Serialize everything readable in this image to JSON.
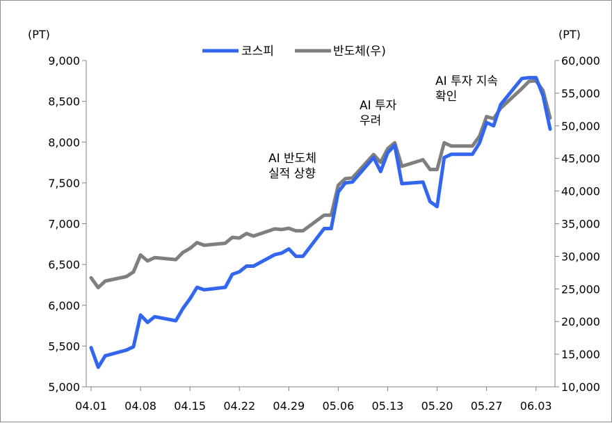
{
  "chart_data": {
    "type": "line",
    "left_unit": "(PT)",
    "right_unit": "(PT)",
    "x_tick_labels": [
      "04.01",
      "04.08",
      "04.15",
      "04.22",
      "04.29",
      "05.06",
      "05.13",
      "05.20",
      "05.27",
      "06.03"
    ],
    "left_axis": {
      "ylim": [
        5000,
        9000
      ],
      "ticks": [
        "5,000",
        "5,500",
        "6,000",
        "6,500",
        "7,000",
        "7,500",
        "8,000",
        "8,500",
        "9,000"
      ]
    },
    "right_axis": {
      "ylim": [
        10000,
        60000
      ],
      "ticks": [
        "10,000",
        "15,000",
        "20,000",
        "25,000",
        "30,000",
        "35,000",
        "40,000",
        "45,000",
        "50,000",
        "55,000",
        "60,000"
      ]
    },
    "legend": {
      "position": "top-center"
    },
    "series": [
      {
        "name": "코스피",
        "axis": "left",
        "color": "#3366ee",
        "points": [
          [
            "2026-04-01",
            5480
          ],
          [
            "2026-04-02",
            5240
          ],
          [
            "2026-04-03",
            5380
          ],
          [
            "2026-04-06",
            5450
          ],
          [
            "2026-04-07",
            5490
          ],
          [
            "2026-04-08",
            5880
          ],
          [
            "2026-04-09",
            5790
          ],
          [
            "2026-04-10",
            5860
          ],
          [
            "2026-04-13",
            5810
          ],
          [
            "2026-04-14",
            5960
          ],
          [
            "2026-04-15",
            6080
          ],
          [
            "2026-04-16",
            6220
          ],
          [
            "2026-04-17",
            6190
          ],
          [
            "2026-04-20",
            6220
          ],
          [
            "2026-04-21",
            6380
          ],
          [
            "2026-04-22",
            6410
          ],
          [
            "2026-04-23",
            6480
          ],
          [
            "2026-04-24",
            6480
          ],
          [
            "2026-04-27",
            6620
          ],
          [
            "2026-04-28",
            6640
          ],
          [
            "2026-04-29",
            6690
          ],
          [
            "2026-04-30",
            6600
          ],
          [
            "2026-05-01",
            6600
          ],
          [
            "2026-05-04",
            6940
          ],
          [
            "2026-05-05",
            6940
          ],
          [
            "2026-05-06",
            7390
          ],
          [
            "2026-05-07",
            7500
          ],
          [
            "2026-05-08",
            7510
          ],
          [
            "2026-05-11",
            7810
          ],
          [
            "2026-05-12",
            7640
          ],
          [
            "2026-05-13",
            7870
          ],
          [
            "2026-05-14",
            7960
          ],
          [
            "2026-05-15",
            7490
          ],
          [
            "2026-05-18",
            7510
          ],
          [
            "2026-05-19",
            7270
          ],
          [
            "2026-05-20",
            7210
          ],
          [
            "2026-05-21",
            7810
          ],
          [
            "2026-05-22",
            7850
          ],
          [
            "2026-05-25",
            7850
          ],
          [
            "2026-05-26",
            7990
          ],
          [
            "2026-05-27",
            8240
          ],
          [
            "2026-05-28",
            8200
          ],
          [
            "2026-05-29",
            8460
          ],
          [
            "2026-06-01",
            8780
          ],
          [
            "2026-06-02",
            8790
          ],
          [
            "2026-06-03",
            8790
          ],
          [
            "2026-06-04",
            8570
          ],
          [
            "2026-06-05",
            8160
          ]
        ]
      },
      {
        "name": "반도체(우)",
        "axis": "right",
        "color": "#7f7f7f",
        "points": [
          [
            "2026-04-01",
            26700
          ],
          [
            "2026-04-02",
            25200
          ],
          [
            "2026-04-03",
            26200
          ],
          [
            "2026-04-06",
            26900
          ],
          [
            "2026-04-07",
            27600
          ],
          [
            "2026-04-08",
            30200
          ],
          [
            "2026-04-09",
            29300
          ],
          [
            "2026-04-10",
            29800
          ],
          [
            "2026-04-13",
            29500
          ],
          [
            "2026-04-14",
            30600
          ],
          [
            "2026-04-15",
            31200
          ],
          [
            "2026-04-16",
            32100
          ],
          [
            "2026-04-17",
            31700
          ],
          [
            "2026-04-20",
            32000
          ],
          [
            "2026-04-21",
            32900
          ],
          [
            "2026-04-22",
            32800
          ],
          [
            "2026-04-23",
            33500
          ],
          [
            "2026-04-24",
            33100
          ],
          [
            "2026-04-27",
            34200
          ],
          [
            "2026-04-28",
            34100
          ],
          [
            "2026-04-29",
            34300
          ],
          [
            "2026-04-30",
            33900
          ],
          [
            "2026-05-01",
            33900
          ],
          [
            "2026-05-04",
            36300
          ],
          [
            "2026-05-05",
            36300
          ],
          [
            "2026-05-06",
            40900
          ],
          [
            "2026-05-07",
            41900
          ],
          [
            "2026-05-08",
            42000
          ],
          [
            "2026-05-11",
            45600
          ],
          [
            "2026-05-12",
            44400
          ],
          [
            "2026-05-13",
            46500
          ],
          [
            "2026-05-14",
            47400
          ],
          [
            "2026-05-15",
            43800
          ],
          [
            "2026-05-18",
            44800
          ],
          [
            "2026-05-19",
            43300
          ],
          [
            "2026-05-20",
            43300
          ],
          [
            "2026-05-21",
            47400
          ],
          [
            "2026-05-22",
            46900
          ],
          [
            "2026-05-25",
            46900
          ],
          [
            "2026-05-26",
            48400
          ],
          [
            "2026-05-27",
            51400
          ],
          [
            "2026-05-28",
            51100
          ],
          [
            "2026-05-29",
            52700
          ],
          [
            "2026-06-01",
            55700
          ],
          [
            "2026-06-02",
            56800
          ],
          [
            "2026-06-03",
            56900
          ],
          [
            "2026-06-04",
            55400
          ],
          [
            "2026-06-05",
            51200
          ]
        ]
      }
    ],
    "annotations": [
      {
        "lines": [
          "AI 반도체",
          "실적 상향"
        ]
      },
      {
        "lines": [
          "AI 투자",
          "우려"
        ]
      },
      {
        "lines": [
          "AI 투자 지속",
          "확인"
        ]
      }
    ]
  }
}
